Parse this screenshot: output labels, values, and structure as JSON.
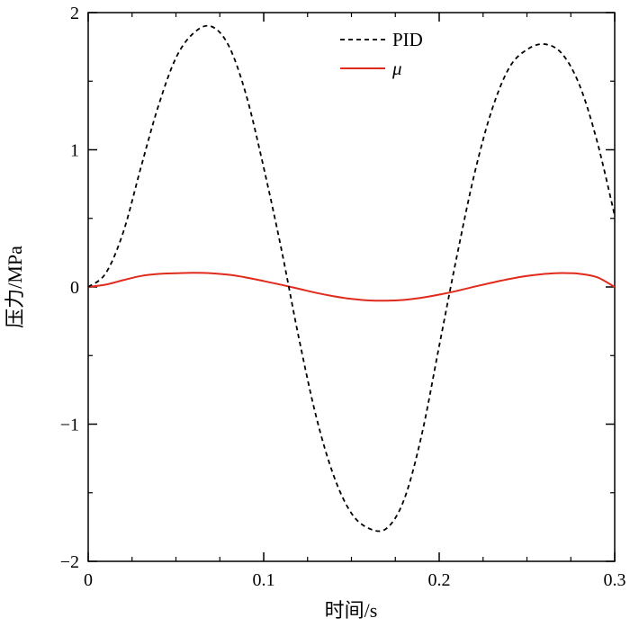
{
  "chart_data": {
    "type": "line",
    "title": "",
    "xlabel": "时间/s",
    "ylabel": "压力/MPa",
    "xlim": [
      0,
      0.3
    ],
    "ylim": [
      -2,
      2
    ],
    "x_ticks": [
      0,
      0.1,
      0.2,
      0.3
    ],
    "x_tick_labels": [
      "0",
      "0.1",
      "0.2",
      "0.3"
    ],
    "y_ticks": [
      -2,
      -1,
      0,
      1,
      2
    ],
    "y_tick_labels": [
      "−2",
      "−1",
      "0",
      "1",
      "2"
    ],
    "grid": false,
    "legend_position": "top-right",
    "series": [
      {
        "name": "PID",
        "color": "#000000",
        "style": "dashed",
        "x": [
          0,
          0.01,
          0.02,
          0.03,
          0.04,
          0.05,
          0.06,
          0.07,
          0.08,
          0.09,
          0.1,
          0.11,
          0.12,
          0.13,
          0.14,
          0.15,
          0.16,
          0.17,
          0.18,
          0.19,
          0.2,
          0.21,
          0.22,
          0.23,
          0.24,
          0.25,
          0.26,
          0.27,
          0.28,
          0.29,
          0.3
        ],
        "y": [
          0,
          0.1,
          0.4,
          0.87,
          1.32,
          1.67,
          1.85,
          1.9,
          1.76,
          1.4,
          0.87,
          0.28,
          -0.37,
          -0.95,
          -1.38,
          -1.65,
          -1.76,
          -1.76,
          -1.55,
          -1.08,
          -0.43,
          0.22,
          0.82,
          1.29,
          1.6,
          1.73,
          1.77,
          1.7,
          1.47,
          1.06,
          0.52
        ]
      },
      {
        "name": "μ",
        "color": "#e02a1c",
        "style": "solid",
        "x": [
          0,
          0.01,
          0.02,
          0.03,
          0.04,
          0.05,
          0.06,
          0.07,
          0.08,
          0.09,
          0.1,
          0.11,
          0.12,
          0.13,
          0.14,
          0.15,
          0.16,
          0.17,
          0.18,
          0.19,
          0.2,
          0.21,
          0.22,
          0.23,
          0.24,
          0.25,
          0.26,
          0.27,
          0.28,
          0.29,
          0.3
        ],
        "y": [
          0,
          0.017,
          0.05,
          0.08,
          0.095,
          0.1,
          0.103,
          0.1,
          0.089,
          0.069,
          0.043,
          0.016,
          -0.013,
          -0.043,
          -0.068,
          -0.087,
          -0.098,
          -0.1,
          -0.094,
          -0.079,
          -0.056,
          -0.029,
          0.002,
          0.031,
          0.058,
          0.08,
          0.095,
          0.102,
          0.096,
          0.071,
          0.0
        ]
      }
    ]
  }
}
